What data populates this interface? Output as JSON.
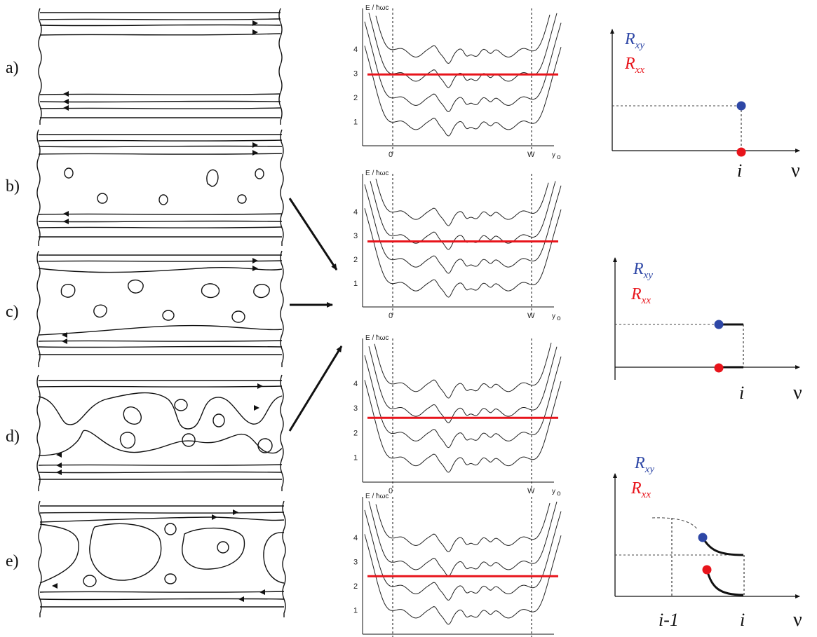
{
  "panel_labels": [
    "a)",
    "b)",
    "c)",
    "d)",
    "e)"
  ],
  "energy_plot": {
    "ylabel": "E / ħωc",
    "yticks": [
      "1",
      "2",
      "3",
      "4"
    ],
    "xticks": [
      "0",
      "W"
    ],
    "xlabel": "y",
    "xlabel_sub": "o",
    "fermi_levels": [
      2.95,
      2.75,
      2.6,
      2.4
    ],
    "fermi_color": "#e8141b"
  },
  "resistance_plots": {
    "rxy_label": "R",
    "rxy_sub": "xy",
    "rxx_label": "R",
    "rxx_sub": "xx",
    "rxy_color": "#2e47a6",
    "rxx_color": "#e8141b",
    "x_symbol": "ν",
    "tick_i": "i",
    "tick_i_minus_1": "i-1"
  }
}
